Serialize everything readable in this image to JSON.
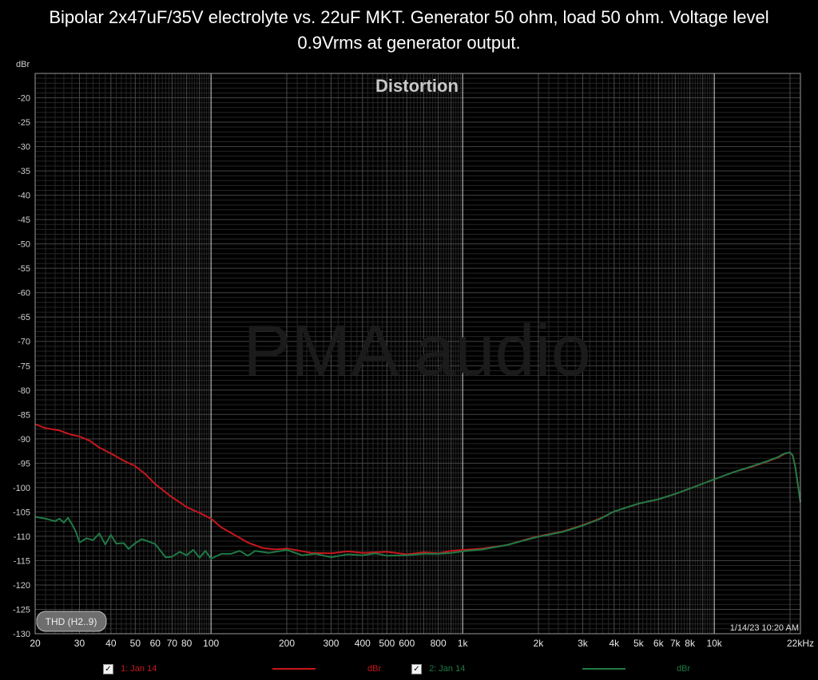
{
  "title_line1": "Bipolar 2x47uF/35V electrolyte vs. 22uF MKT. Generator 50 ohm, load 50 ohm. Voltage level",
  "title_line2": "0.9Vrms at generator output.",
  "watermark": "PMA audio",
  "thd_button": "THD (H2..9)",
  "timestamp": "1/14/23 10:20 AM",
  "legend": [
    {
      "check": "✓",
      "name": "1: Jan 14",
      "unit": "dBr",
      "color": "#c8161d"
    },
    {
      "check": "✓",
      "name": "2: Jan 14",
      "unit": "dBr",
      "color": "#1f7a45"
    }
  ],
  "chart_data": {
    "type": "line",
    "title": "Distortion",
    "ylabel": "dBr",
    "xlabel": "",
    "x_scale": "log",
    "xlim": [
      20,
      22000
    ],
    "ylim": [
      -130,
      -15
    ],
    "y_ticks": [
      -20,
      -25,
      -30,
      -35,
      -40,
      -45,
      -50,
      -55,
      -60,
      -65,
      -70,
      -75,
      -80,
      -85,
      -90,
      -95,
      -100,
      -105,
      -110,
      -115,
      -120,
      -125,
      -130
    ],
    "x_ticks": [
      {
        "v": 20,
        "label": "20"
      },
      {
        "v": 30,
        "label": "30"
      },
      {
        "v": 40,
        "label": "40"
      },
      {
        "v": 50,
        "label": "50"
      },
      {
        "v": 60,
        "label": "60"
      },
      {
        "v": 70,
        "label": "70"
      },
      {
        "v": 80,
        "label": "80"
      },
      {
        "v": 100,
        "label": "100"
      },
      {
        "v": 200,
        "label": "200"
      },
      {
        "v": 300,
        "label": "300"
      },
      {
        "v": 400,
        "label": "400"
      },
      {
        "v": 500,
        "label": "500"
      },
      {
        "v": 600,
        "label": "600"
      },
      {
        "v": 800,
        "label": "800"
      },
      {
        "v": 1000,
        "label": "1k"
      },
      {
        "v": 2000,
        "label": "2k"
      },
      {
        "v": 3000,
        "label": "3k"
      },
      {
        "v": 4000,
        "label": "4k"
      },
      {
        "v": 5000,
        "label": "5k"
      },
      {
        "v": 6000,
        "label": "6k"
      },
      {
        "v": 7000,
        "label": "7k"
      },
      {
        "v": 8000,
        "label": "8k"
      },
      {
        "v": 10000,
        "label": "10k"
      },
      {
        "v": 22000,
        "label": "22kHz"
      }
    ],
    "grid": true,
    "series": [
      {
        "name": "1: Jan 14",
        "color": "#c8161d",
        "points": [
          [
            20,
            -87
          ],
          [
            22,
            -87.8
          ],
          [
            25,
            -88.3
          ],
          [
            28,
            -89.2
          ],
          [
            30,
            -89.5
          ],
          [
            33,
            -90.4
          ],
          [
            36,
            -91.8
          ],
          [
            40,
            -93
          ],
          [
            45,
            -94.5
          ],
          [
            50,
            -95.6
          ],
          [
            55,
            -97.3
          ],
          [
            60,
            -99.3
          ],
          [
            65,
            -100.7
          ],
          [
            70,
            -102
          ],
          [
            75,
            -103
          ],
          [
            80,
            -104
          ],
          [
            90,
            -105.2
          ],
          [
            100,
            -106.4
          ],
          [
            110,
            -108.2
          ],
          [
            120,
            -109.3
          ],
          [
            140,
            -111.3
          ],
          [
            160,
            -112.4
          ],
          [
            180,
            -112.7
          ],
          [
            200,
            -112.5
          ],
          [
            250,
            -113.4
          ],
          [
            300,
            -113.5
          ],
          [
            350,
            -113.1
          ],
          [
            400,
            -113.4
          ],
          [
            500,
            -113.2
          ],
          [
            600,
            -113.7
          ],
          [
            700,
            -113.3
          ],
          [
            800,
            -113.5
          ],
          [
            900,
            -113.0
          ],
          [
            1000,
            -112.8
          ],
          [
            1200,
            -112.5
          ],
          [
            1500,
            -111.8
          ],
          [
            1800,
            -110.6
          ],
          [
            2000,
            -110.0
          ],
          [
            2500,
            -109.0
          ],
          [
            3000,
            -107.7
          ],
          [
            3500,
            -106.4
          ],
          [
            4000,
            -104.9
          ],
          [
            5000,
            -103.3
          ],
          [
            6000,
            -102.4
          ],
          [
            7000,
            -101.3
          ],
          [
            8000,
            -100.2
          ],
          [
            9000,
            -99.2
          ],
          [
            10000,
            -98.3
          ],
          [
            12000,
            -96.8
          ],
          [
            14000,
            -95.8
          ],
          [
            16000,
            -94.8
          ],
          [
            18000,
            -93.8
          ],
          [
            19000,
            -93.1
          ],
          [
            20000,
            -92.8
          ],
          [
            20500,
            -93.4
          ],
          [
            21000,
            -95.8
          ],
          [
            21500,
            -99.5
          ],
          [
            22000,
            -103
          ]
        ]
      },
      {
        "name": "2: Jan 14",
        "color": "#1f7a45",
        "points": [
          [
            20,
            -106
          ],
          [
            22,
            -106.4
          ],
          [
            24,
            -106.9
          ],
          [
            25,
            -106.4
          ],
          [
            26,
            -107.2
          ],
          [
            27,
            -106.2
          ],
          [
            28,
            -107.5
          ],
          [
            29,
            -109.0
          ],
          [
            30,
            -111.3
          ],
          [
            32,
            -110.4
          ],
          [
            34,
            -110.8
          ],
          [
            36,
            -109.4
          ],
          [
            38,
            -111.7
          ],
          [
            40,
            -109.7
          ],
          [
            42,
            -111.5
          ],
          [
            45,
            -111.4
          ],
          [
            47,
            -112.6
          ],
          [
            50,
            -111.4
          ],
          [
            53,
            -110.6
          ],
          [
            56,
            -111.0
          ],
          [
            60,
            -111.6
          ],
          [
            63,
            -113.0
          ],
          [
            66,
            -114.3
          ],
          [
            70,
            -114.2
          ],
          [
            75,
            -113.2
          ],
          [
            80,
            -113.9
          ],
          [
            85,
            -112.8
          ],
          [
            90,
            -114.4
          ],
          [
            95,
            -113.0
          ],
          [
            100,
            -114.6
          ],
          [
            110,
            -113.6
          ],
          [
            120,
            -113.6
          ],
          [
            130,
            -113.0
          ],
          [
            140,
            -114.0
          ],
          [
            150,
            -113.0
          ],
          [
            170,
            -113.4
          ],
          [
            200,
            -112.8
          ],
          [
            230,
            -113.9
          ],
          [
            260,
            -113.6
          ],
          [
            300,
            -114.3
          ],
          [
            350,
            -113.7
          ],
          [
            400,
            -113.9
          ],
          [
            450,
            -113.5
          ],
          [
            500,
            -114.0
          ],
          [
            600,
            -113.9
          ],
          [
            700,
            -113.6
          ],
          [
            800,
            -113.6
          ],
          [
            900,
            -113.4
          ],
          [
            1000,
            -113.1
          ],
          [
            1200,
            -112.7
          ],
          [
            1500,
            -111.8
          ],
          [
            1800,
            -110.7
          ],
          [
            2000,
            -110.1
          ],
          [
            2500,
            -109.1
          ],
          [
            3000,
            -107.8
          ],
          [
            3500,
            -106.5
          ],
          [
            4000,
            -104.9
          ],
          [
            5000,
            -103.3
          ],
          [
            6000,
            -102.4
          ],
          [
            7000,
            -101.3
          ],
          [
            8000,
            -100.2
          ],
          [
            9000,
            -99.2
          ],
          [
            10000,
            -98.3
          ],
          [
            12000,
            -96.8
          ],
          [
            14000,
            -95.7
          ],
          [
            16000,
            -94.7
          ],
          [
            18000,
            -93.7
          ],
          [
            19000,
            -93.0
          ],
          [
            20000,
            -92.8
          ],
          [
            20500,
            -93.4
          ],
          [
            21000,
            -95.8
          ],
          [
            21500,
            -99.5
          ],
          [
            22000,
            -103
          ]
        ]
      }
    ]
  }
}
